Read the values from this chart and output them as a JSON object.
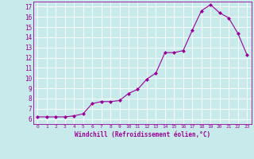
{
  "x": [
    0,
    1,
    2,
    3,
    4,
    5,
    6,
    7,
    8,
    9,
    10,
    11,
    12,
    13,
    14,
    15,
    16,
    17,
    18,
    19,
    20,
    21,
    22,
    23
  ],
  "y": [
    6.2,
    6.2,
    6.2,
    6.2,
    6.3,
    6.5,
    7.5,
    7.7,
    7.7,
    7.8,
    8.5,
    8.9,
    9.9,
    10.5,
    12.5,
    12.5,
    12.7,
    14.7,
    16.6,
    17.2,
    16.4,
    15.9,
    14.4,
    12.3
  ],
  "xlim": [
    -0.5,
    23.5
  ],
  "ylim": [
    5.5,
    17.5
  ],
  "yticks": [
    6,
    7,
    8,
    9,
    10,
    11,
    12,
    13,
    14,
    15,
    16,
    17
  ],
  "xticks": [
    0,
    1,
    2,
    3,
    4,
    5,
    6,
    7,
    8,
    9,
    10,
    11,
    12,
    13,
    14,
    15,
    16,
    17,
    18,
    19,
    20,
    21,
    22,
    23
  ],
  "xlabel": "Windchill (Refroidissement éolien,°C)",
  "line_color": "#990099",
  "marker": "D",
  "bg_color": "#c8eaea",
  "grid_color": "#ffffff",
  "ytick_fontsize": 5.5,
  "xtick_fontsize": 4.5,
  "xlabel_fontsize": 5.5
}
